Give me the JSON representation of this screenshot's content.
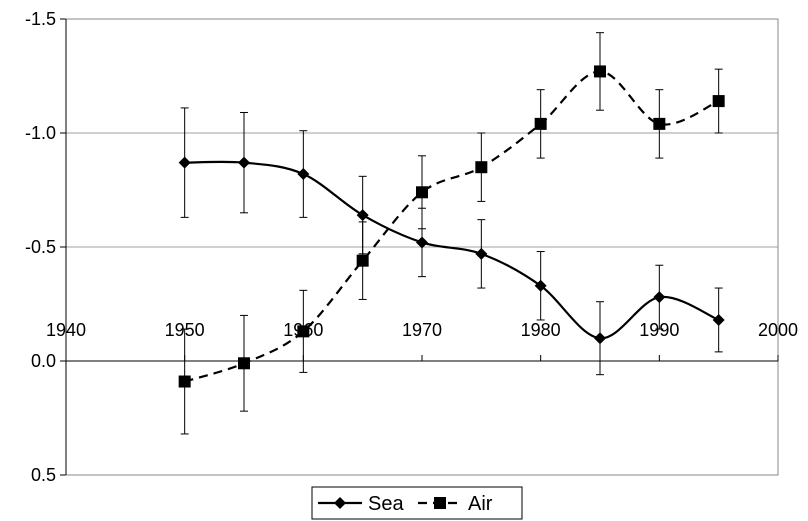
{
  "chart_data": {
    "type": "line",
    "title": "",
    "xlabel": "",
    "ylabel": "",
    "x_ticks": [
      "1940",
      "1950",
      "1960",
      "1970",
      "1980",
      "1990",
      "2000"
    ],
    "y_ticks": [
      "-1.5",
      "-1.0",
      "-0.5",
      "0.0",
      "0.5"
    ],
    "xlim": [
      1940,
      2000
    ],
    "ylim": [
      -1.5,
      0.5
    ],
    "y_inverted": true,
    "grid": "horizontal",
    "legend_position": "bottom-center",
    "x": [
      1950,
      1955,
      1960,
      1965,
      1970,
      1975,
      1980,
      1985,
      1990,
      1995
    ],
    "series": [
      {
        "name": "Sea",
        "marker": "diamond",
        "line_style": "solid",
        "values": [
          -0.87,
          -0.87,
          -0.82,
          -0.64,
          -0.52,
          -0.47,
          -0.33,
          -0.1,
          -0.28,
          -0.18
        ],
        "error": [
          0.24,
          0.22,
          0.19,
          0.17,
          0.15,
          0.15,
          0.15,
          0.16,
          0.14,
          0.14
        ]
      },
      {
        "name": "Air",
        "marker": "square",
        "line_style": "dashed",
        "values": [
          0.09,
          0.01,
          -0.13,
          -0.44,
          -0.74,
          -0.85,
          -1.04,
          -1.27,
          -1.04,
          -1.14
        ],
        "error": [
          0.23,
          0.21,
          0.18,
          0.17,
          0.16,
          0.15,
          0.15,
          0.17,
          0.15,
          0.14
        ]
      }
    ]
  }
}
